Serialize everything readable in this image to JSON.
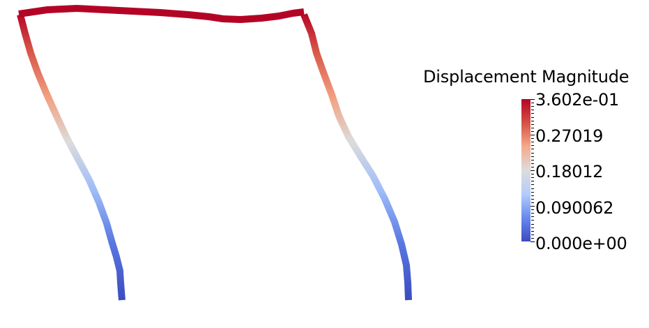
{
  "legend": {
    "title": "Displacement Magnitude",
    "min_label": "0.000e+00",
    "max_label": "3.602e-01",
    "tick_labels": [
      "3.602e-01",
      "0.27019",
      "0.18012",
      "0.090062",
      "0.000e+00"
    ],
    "min": 0,
    "max": 0.3602
  },
  "colormap": {
    "name": "coolwarm",
    "stops": [
      "#3b4cc0",
      "#6a8bef",
      "#b2ccfb",
      "#dddcdc",
      "#f4a98a",
      "#d65244",
      "#b40426"
    ]
  }
}
